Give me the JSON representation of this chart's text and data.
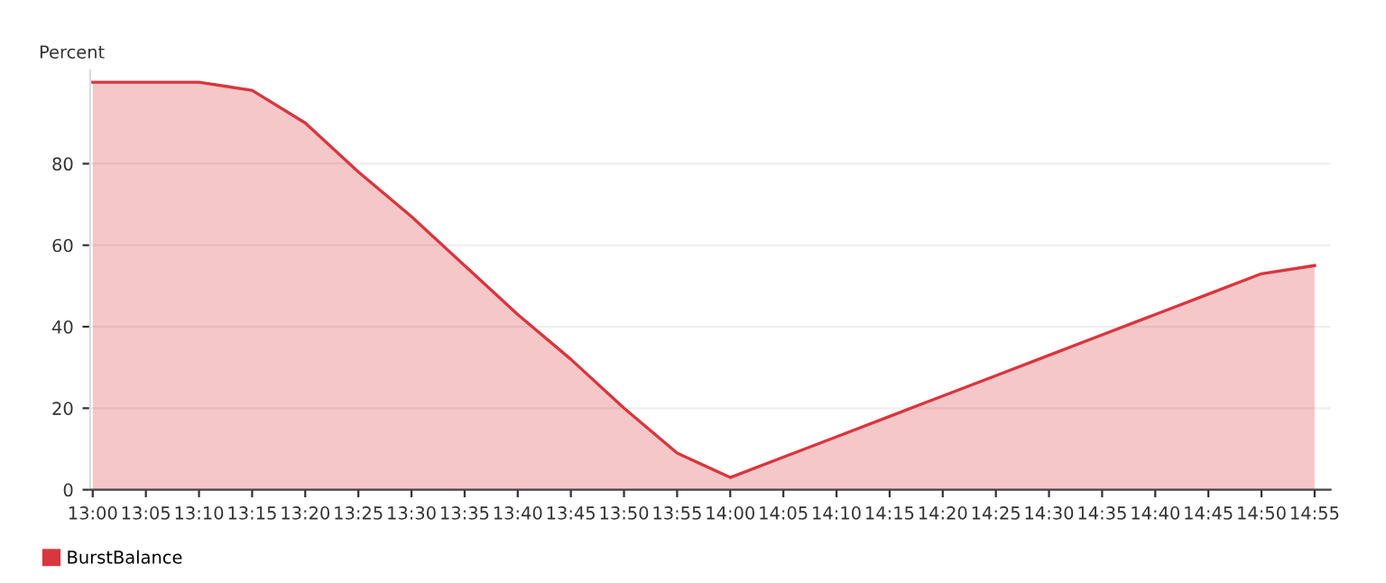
{
  "chart_data": {
    "type": "area",
    "ylabel": "Percent",
    "categories": [
      "13:00",
      "13:05",
      "13:10",
      "13:15",
      "13:20",
      "13:25",
      "13:30",
      "13:35",
      "13:40",
      "13:45",
      "13:50",
      "13:55",
      "14:00",
      "14:05",
      "14:10",
      "14:15",
      "14:20",
      "14:25",
      "14:30",
      "14:35",
      "14:40",
      "14:45",
      "14:50",
      "14:55"
    ],
    "series": [
      {
        "name": "BurstBalance",
        "color": "#d9363e",
        "values": [
          100,
          100,
          100,
          98,
          90,
          78,
          67,
          55,
          43,
          32,
          20,
          9,
          3,
          8,
          13,
          18,
          23,
          28,
          33,
          38,
          43,
          48,
          53,
          55
        ]
      }
    ],
    "ylim": [
      0,
      103
    ],
    "yticks": [
      0,
      20,
      40,
      60,
      80
    ],
    "grid": "y",
    "legend": "bottom left"
  }
}
